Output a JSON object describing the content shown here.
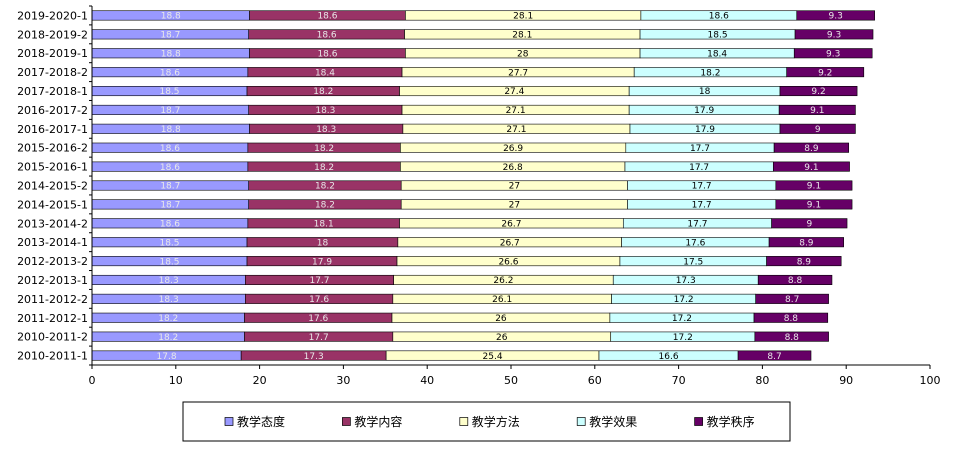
{
  "chart_data": {
    "type": "bar",
    "orientation": "horizontal",
    "stacked": true,
    "categories": [
      "2019-2020-1",
      "2018-2019-2",
      "2018-2019-1",
      "2017-2018-2",
      "2017-2018-1",
      "2016-2017-2",
      "2016-2017-1",
      "2015-2016-2",
      "2015-2016-1",
      "2014-2015-2",
      "2014-2015-1",
      "2013-2014-2",
      "2013-2014-1",
      "2012-2013-2",
      "2012-2013-1",
      "2011-2012-2",
      "2011-2012-1",
      "2010-2011-2",
      "2010-2011-1"
    ],
    "series": [
      {
        "name": "教学态度",
        "color": "#9999ff",
        "values": [
          18.8,
          18.7,
          18.8,
          18.6,
          18.5,
          18.7,
          18.8,
          18.6,
          18.6,
          18.7,
          18.7,
          18.6,
          18.5,
          18.5,
          18.3,
          18.3,
          18.2,
          18.2,
          17.8
        ],
        "labels": [
          "18.8",
          "18.7",
          "18.8",
          "18.6",
          "18.5",
          "18.7",
          "18.8",
          "18.6",
          "18.6",
          "18.7",
          "18.7",
          "18.6",
          "18.5",
          "18.5",
          "18.3",
          "18.3",
          "18.2",
          "18.2",
          "17.8"
        ]
      },
      {
        "name": "教学内容",
        "color": "#993366",
        "values": [
          18.6,
          18.6,
          18.6,
          18.4,
          18.2,
          18.3,
          18.3,
          18.2,
          18.2,
          18.2,
          18.2,
          18.1,
          18,
          17.9,
          17.7,
          17.6,
          17.6,
          17.7,
          17.3
        ],
        "labels": [
          "18.6",
          "18.6",
          "18.6",
          "18.4",
          "18.2",
          "18.3",
          "18.3",
          "18.2",
          "18.2",
          "18.2",
          "18.2",
          "18.1",
          "18",
          "17.9",
          "17.7",
          "17.6",
          "17.6",
          "17.7",
          "17.3"
        ]
      },
      {
        "name": "教学方法",
        "color": "#ffffcc",
        "values": [
          28.1,
          28.1,
          28,
          27.7,
          27.4,
          27.1,
          27.1,
          26.9,
          26.8,
          27,
          27,
          26.7,
          26.7,
          26.6,
          26.2,
          26.1,
          26,
          26,
          25.4
        ],
        "labels": [
          "28.1",
          "28.1",
          "28",
          "27.7",
          "27.4",
          "27.1",
          "27.1",
          "26.9",
          "26.8",
          "27",
          "27",
          "26.7",
          "26.7",
          "26.6",
          "26.2",
          "26.1",
          "26",
          "26",
          "25.4"
        ]
      },
      {
        "name": "教学效果",
        "color": "#ccffff",
        "values": [
          18.6,
          18.5,
          18.4,
          18.2,
          18,
          17.9,
          17.9,
          17.7,
          17.7,
          17.7,
          17.7,
          17.7,
          17.6,
          17.5,
          17.3,
          17.2,
          17.2,
          17.2,
          16.6
        ],
        "labels": [
          "18.6",
          "18.5",
          "18.4",
          "18.2",
          "18",
          "17.9",
          "17.9",
          "17.7",
          "17.7",
          "17.7",
          "17.7",
          "17.7",
          "17.6",
          "17.5",
          "17.3",
          "17.2",
          "17.2",
          "17.2",
          "16.6"
        ]
      },
      {
        "name": "教学秩序",
        "color": "#660066",
        "values": [
          9.3,
          9.3,
          9.3,
          9.2,
          9.2,
          9.1,
          9,
          8.9,
          9.1,
          9.1,
          9.1,
          9,
          8.9,
          8.9,
          8.8,
          8.7,
          8.8,
          8.8,
          8.7
        ],
        "labels": [
          "9.3",
          "9.3",
          "9.3",
          "9.2",
          "9.2",
          "9.1",
          "9",
          "8.9",
          "9.1",
          "9.1",
          "9.1",
          "9",
          "8.9",
          "8.9",
          "8.8",
          "8.7",
          "8.8",
          "8.8",
          "8.7"
        ]
      }
    ],
    "xlim": [
      0,
      100
    ],
    "xticks": [
      "0",
      "10",
      "20",
      "30",
      "40",
      "50",
      "60",
      "70",
      "80",
      "90",
      "100"
    ],
    "grid": false,
    "legend_position": "bottom"
  }
}
